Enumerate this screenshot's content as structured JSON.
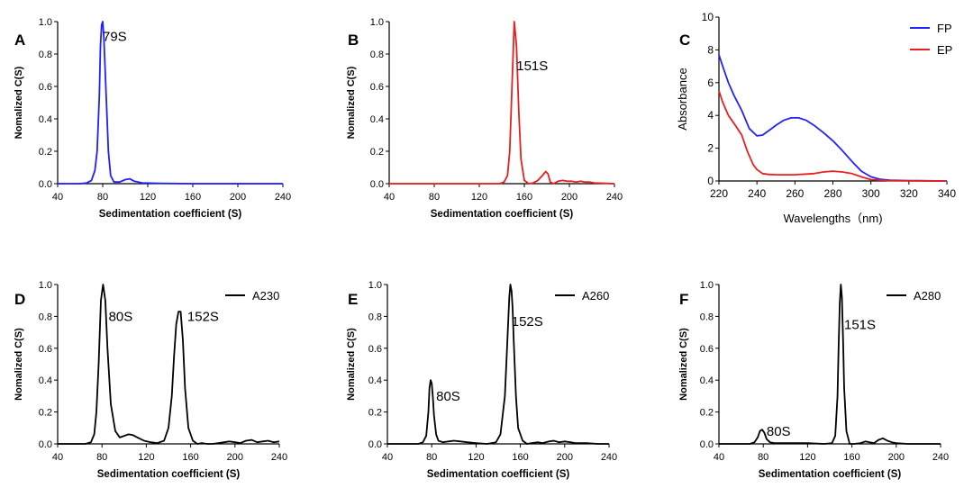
{
  "chart_data": [
    {
      "panel": "A",
      "type": "line",
      "xlabel": "Sedimentation coefficient (S)",
      "ylabel": "Nomalized C(S)",
      "xlim": [
        40,
        240
      ],
      "ylim": [
        0,
        1.0
      ],
      "xticks": [
        40,
        80,
        120,
        160,
        200,
        240
      ],
      "yticks": [
        0.0,
        0.2,
        0.4,
        0.6,
        0.8,
        1.0
      ],
      "tick_labels_x": [
        "40",
        "80",
        "120",
        "160",
        "200",
        "240"
      ],
      "tick_labels_y": [
        "0.0",
        "0.2",
        "0.4",
        "0.6",
        "0.8",
        "1.0"
      ],
      "annotations": [
        {
          "text": "79S",
          "x": 80,
          "y": 0.88
        }
      ],
      "series": [
        {
          "color": "#1f1fff",
          "x": [
            40,
            60,
            66,
            70,
            73,
            75,
            77,
            78,
            79,
            80,
            81,
            83,
            85,
            87,
            90,
            95,
            100,
            104,
            108,
            115,
            130,
            160,
            200,
            240
          ],
          "y": [
            0,
            0,
            0.005,
            0.02,
            0.08,
            0.2,
            0.55,
            0.85,
            0.98,
            1.0,
            0.9,
            0.55,
            0.2,
            0.05,
            0.01,
            0.01,
            0.025,
            0.03,
            0.015,
            0.005,
            0.002,
            0,
            0,
            0
          ]
        }
      ]
    },
    {
      "panel": "B",
      "type": "line",
      "xlabel": "Sedimentation coefficient (S)",
      "ylabel": "Nomalized C(S)",
      "xlim": [
        40,
        240
      ],
      "ylim": [
        0,
        1.0
      ],
      "xticks": [
        40,
        80,
        120,
        160,
        200,
        240
      ],
      "yticks": [
        0.0,
        0.2,
        0.4,
        0.6,
        0.8,
        1.0
      ],
      "tick_labels_x": [
        "40",
        "80",
        "120",
        "160",
        "200",
        "240"
      ],
      "tick_labels_y": [
        "0.0",
        "0.2",
        "0.4",
        "0.6",
        "0.8",
        "1.0"
      ],
      "annotations": [
        {
          "text": "151S",
          "x": 153,
          "y": 0.7
        }
      ],
      "series": [
        {
          "color": "#e62020",
          "x": [
            40,
            120,
            138,
            142,
            145,
            147,
            149,
            151,
            153,
            155,
            157,
            160,
            164,
            168,
            172,
            176,
            179,
            181,
            183,
            186,
            190,
            194,
            198,
            202,
            206,
            210,
            214,
            218,
            222,
            240
          ],
          "y": [
            0,
            0,
            0,
            0.01,
            0.05,
            0.2,
            0.6,
            1.0,
            0.85,
            0.45,
            0.15,
            0.02,
            0.0,
            0.005,
            0.02,
            0.05,
            0.075,
            0.06,
            0.01,
            0.0,
            0.015,
            0.02,
            0.015,
            0.015,
            0.01,
            0.015,
            0.01,
            0.01,
            0.005,
            0
          ]
        }
      ]
    },
    {
      "panel": "C",
      "type": "line",
      "xlabel": "Wavelengths（nm)",
      "ylabel": "Absorbance",
      "xlim": [
        220,
        340
      ],
      "ylim": [
        0,
        10
      ],
      "xticks": [
        220,
        240,
        260,
        280,
        300,
        320,
        340
      ],
      "yticks": [
        0,
        2,
        4,
        6,
        8,
        10
      ],
      "tick_labels_x": [
        "220",
        "240",
        "260",
        "280",
        "300",
        "320",
        "340"
      ],
      "tick_labels_y": [
        "0",
        "2",
        "4",
        "6",
        "8",
        "10"
      ],
      "legend": {
        "position": "top-right",
        "entries": [
          {
            "label": "FP",
            "color": "#2222ff"
          },
          {
            "label": "EP",
            "color": "#e62020"
          }
        ]
      },
      "series": [
        {
          "name": "FP",
          "color": "#2222ff",
          "x": [
            220,
            222,
            225,
            228,
            232,
            236,
            240,
            243,
            246,
            250,
            254,
            258,
            262,
            266,
            270,
            275,
            280,
            285,
            290,
            295,
            300,
            305,
            310,
            320,
            330,
            340
          ],
          "y": [
            7.7,
            7.0,
            6.0,
            5.2,
            4.3,
            3.2,
            2.75,
            2.8,
            3.05,
            3.4,
            3.7,
            3.85,
            3.85,
            3.7,
            3.4,
            2.95,
            2.45,
            1.85,
            1.2,
            0.6,
            0.25,
            0.1,
            0.05,
            0.02,
            0.01,
            0
          ]
        },
        {
          "name": "EP",
          "color": "#e62020",
          "x": [
            220,
            222,
            225,
            228,
            232,
            235,
            238,
            240,
            243,
            246,
            250,
            260,
            270,
            275,
            280,
            285,
            290,
            295,
            300,
            310,
            320,
            340
          ],
          "y": [
            5.5,
            4.8,
            4.0,
            3.5,
            2.8,
            1.8,
            1.0,
            0.7,
            0.45,
            0.4,
            0.38,
            0.38,
            0.45,
            0.55,
            0.6,
            0.55,
            0.45,
            0.25,
            0.08,
            0.02,
            0.01,
            0
          ]
        }
      ]
    },
    {
      "panel": "D",
      "type": "line",
      "xlabel": "Sedimentation coefficient (S)",
      "ylabel": "Nomalized C(S)",
      "xlim": [
        40,
        240
      ],
      "ylim": [
        0,
        1.0
      ],
      "xticks": [
        40,
        80,
        120,
        160,
        200,
        240
      ],
      "yticks": [
        0.0,
        0.2,
        0.4,
        0.6,
        0.8,
        1.0
      ],
      "tick_labels_x": [
        "40",
        "80",
        "120",
        "160",
        "200",
        "240"
      ],
      "tick_labels_y": [
        "0.0",
        "0.2",
        "0.4",
        "0.6",
        "0.8",
        "1.0"
      ],
      "legend": {
        "position": "top-right",
        "entries": [
          {
            "label": "A230",
            "color": "#000000"
          }
        ]
      },
      "annotations": [
        {
          "text": "80S",
          "x": 86,
          "y": 0.77
        },
        {
          "text": "152S",
          "x": 157,
          "y": 0.77
        }
      ],
      "series": [
        {
          "name": "A230",
          "color": "#000000",
          "x": [
            40,
            65,
            70,
            73,
            75,
            77,
            79,
            81,
            83,
            85,
            88,
            92,
            96,
            100,
            104,
            108,
            112,
            118,
            124,
            130,
            136,
            140,
            143,
            145,
            147,
            149,
            151,
            153,
            155,
            158,
            162,
            166,
            170,
            175,
            180,
            185,
            190,
            195,
            200,
            205,
            210,
            215,
            220,
            225,
            230,
            235,
            240
          ],
          "y": [
            0,
            0,
            0.01,
            0.06,
            0.2,
            0.5,
            0.9,
            1.0,
            0.9,
            0.6,
            0.25,
            0.08,
            0.04,
            0.05,
            0.06,
            0.055,
            0.04,
            0.02,
            0.01,
            0.005,
            0.02,
            0.1,
            0.3,
            0.55,
            0.75,
            0.83,
            0.83,
            0.65,
            0.35,
            0.1,
            0.02,
            0.0,
            0.005,
            0.0,
            0.0,
            0.005,
            0.01,
            0.015,
            0.01,
            0.005,
            0.02,
            0.025,
            0.01,
            0.015,
            0.02,
            0.01,
            0.015
          ]
        }
      ]
    },
    {
      "panel": "E",
      "type": "line",
      "xlabel": "Sedimentation coefficient (S)",
      "ylabel": "Nomalized C(S)",
      "xlim": [
        40,
        240
      ],
      "ylim": [
        0,
        1.0
      ],
      "xticks": [
        40,
        80,
        120,
        160,
        200,
        240
      ],
      "yticks": [
        0.0,
        0.2,
        0.4,
        0.6,
        0.8,
        1.0
      ],
      "tick_labels_x": [
        "40",
        "80",
        "120",
        "160",
        "200",
        "240"
      ],
      "tick_labels_y": [
        "0.0",
        "0.2",
        "0.4",
        "0.6",
        "0.8",
        "1.0"
      ],
      "legend": {
        "position": "top-right",
        "entries": [
          {
            "label": "A260",
            "color": "#000000"
          }
        ]
      },
      "annotations": [
        {
          "text": "80S",
          "x": 84,
          "y": 0.27
        },
        {
          "text": "152S",
          "x": 152,
          "y": 0.74
        }
      ],
      "series": [
        {
          "name": "A260",
          "color": "#000000",
          "x": [
            40,
            68,
            72,
            75,
            77,
            78,
            79,
            80,
            81,
            82,
            84,
            86,
            90,
            95,
            100,
            106,
            112,
            120,
            130,
            138,
            142,
            146,
            148,
            150,
            151,
            152,
            153,
            154,
            156,
            158,
            162,
            166,
            170,
            176,
            180,
            186,
            190,
            195,
            200,
            205,
            210,
            220,
            230,
            240
          ],
          "y": [
            0,
            0,
            0.01,
            0.05,
            0.2,
            0.35,
            0.4,
            0.38,
            0.3,
            0.18,
            0.06,
            0.02,
            0.01,
            0.015,
            0.02,
            0.015,
            0.01,
            0.005,
            0.0,
            0.01,
            0.06,
            0.3,
            0.6,
            0.92,
            1.0,
            0.96,
            0.85,
            0.65,
            0.3,
            0.1,
            0.02,
            0.0,
            0.005,
            0.01,
            0.005,
            0.015,
            0.02,
            0.01,
            0.015,
            0.01,
            0.005,
            0.005,
            0.0,
            0
          ]
        }
      ]
    },
    {
      "panel": "F",
      "type": "line",
      "xlabel": "Sedimentation coefficient (S)",
      "ylabel": "Nomalized C(S)",
      "xlim": [
        40,
        240
      ],
      "ylim": [
        0,
        1.0
      ],
      "xticks": [
        40,
        80,
        120,
        160,
        200,
        240
      ],
      "yticks": [
        0.0,
        0.2,
        0.4,
        0.6,
        0.8,
        1.0
      ],
      "tick_labels_x": [
        "40",
        "80",
        "120",
        "160",
        "200",
        "240"
      ],
      "tick_labels_y": [
        "0.0",
        "0.2",
        "0.4",
        "0.6",
        "0.8",
        "1.0"
      ],
      "legend": {
        "position": "top-right",
        "entries": [
          {
            "label": "A280",
            "color": "#000000"
          }
        ]
      },
      "annotations": [
        {
          "text": "151S",
          "x": 153,
          "y": 0.72
        },
        {
          "text": "80S",
          "x": 83,
          "y": 0.05
        }
      ],
      "series": [
        {
          "name": "A280",
          "color": "#000000",
          "x": [
            40,
            68,
            72,
            75,
            77,
            79,
            81,
            83,
            86,
            90,
            100,
            120,
            135,
            142,
            145,
            147,
            148,
            149,
            150,
            151,
            152,
            153,
            155,
            158,
            162,
            168,
            172,
            176,
            180,
            184,
            188,
            192,
            196,
            200,
            210,
            220,
            240
          ],
          "y": [
            0,
            0,
            0.01,
            0.04,
            0.08,
            0.09,
            0.07,
            0.03,
            0.01,
            0.005,
            0.005,
            0.005,
            0.0,
            0.005,
            0.05,
            0.3,
            0.6,
            0.88,
            1.0,
            0.92,
            0.65,
            0.35,
            0.08,
            0.0,
            0.0,
            0.005,
            0.015,
            0.01,
            0.005,
            0.025,
            0.035,
            0.02,
            0.01,
            0.005,
            0.0,
            0.0,
            0
          ]
        }
      ]
    }
  ]
}
